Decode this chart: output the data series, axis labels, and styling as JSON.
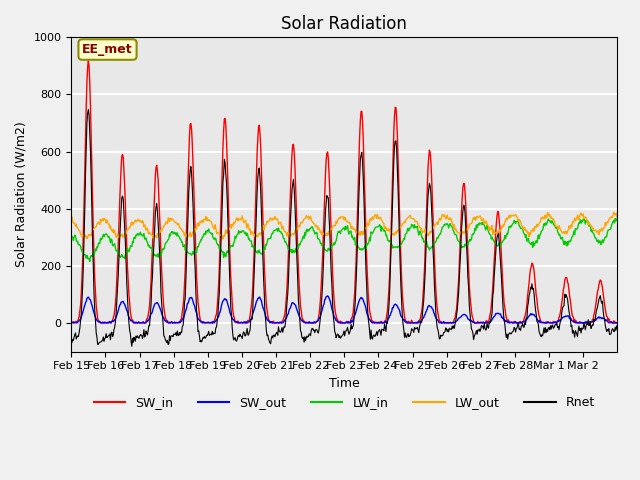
{
  "title": "Solar Radiation",
  "xlabel": "Time",
  "ylabel": "Solar Radiation (W/m2)",
  "ylim": [
    -100,
    1000
  ],
  "annotation": "EE_met",
  "legend": [
    "SW_in",
    "SW_out",
    "LW_in",
    "LW_out",
    "Rnet"
  ],
  "line_colors": {
    "SW_in": "#ff0000",
    "SW_out": "#0000ff",
    "LW_in": "#00cc00",
    "LW_out": "#ffa500",
    "Rnet": "#000000"
  },
  "xtick_labels": [
    "Feb 15",
    "Feb 16",
    "Feb 17",
    "Feb 18",
    "Feb 19",
    "Feb 20",
    "Feb 21",
    "Feb 22",
    "Feb 23",
    "Feb 24",
    "Feb 25",
    "Feb 26",
    "Feb 27",
    "Feb 28",
    "Mar 1",
    "Mar 2"
  ],
  "plot_bg_color": "#e8e8e8",
  "fig_bg_color": "#f0f0f0",
  "sw_in_peaks": [
    920,
    590,
    550,
    700,
    720,
    695,
    625,
    600,
    745,
    760,
    605,
    490,
    390,
    210,
    160,
    150
  ],
  "sw_out_peaks": [
    90,
    75,
    70,
    90,
    85,
    90,
    70,
    95,
    90,
    65,
    60,
    30,
    35,
    30,
    25,
    20
  ],
  "lw_in_base": 265,
  "lw_in_amplitude": 40,
  "lw_out_base": 330,
  "lw_out_amplitude": 30,
  "n_days": 16,
  "points_per_day": 48
}
